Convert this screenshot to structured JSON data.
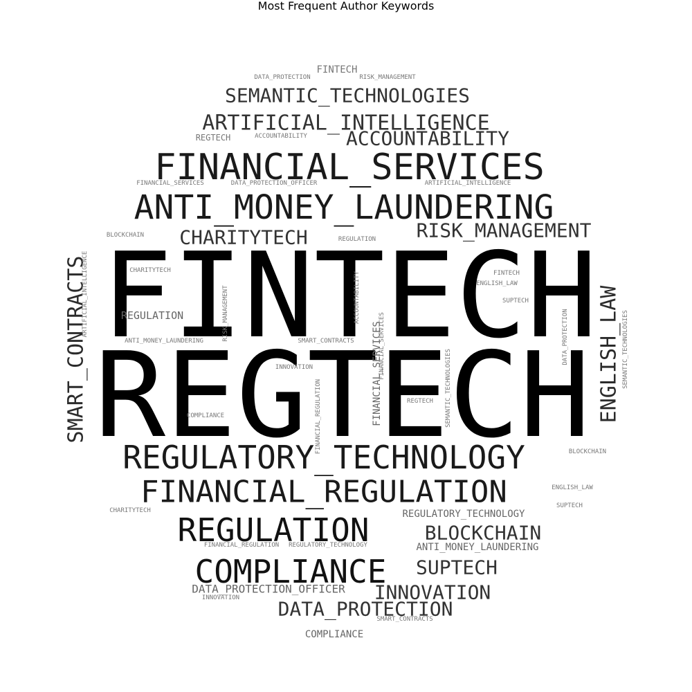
{
  "chart_data": {
    "type": "wordcloud",
    "title": "Most Frequent Author Keywords",
    "mask_shape": "circle",
    "color_scheme": "grayscale",
    "words": [
      {
        "text": "FINTECH",
        "weight": 100
      },
      {
        "text": "REGTECH",
        "weight": 98
      },
      {
        "text": "FINANCIAL_SERVICES",
        "weight": 40
      },
      {
        "text": "ANTI_MONEY_LAUNDERING",
        "weight": 38
      },
      {
        "text": "REGULATORY_TECHNOLOGY",
        "weight": 36
      },
      {
        "text": "COMPLIANCE",
        "weight": 34
      },
      {
        "text": "REGULATION",
        "weight": 34
      },
      {
        "text": "FINANCIAL_REGULATION",
        "weight": 32
      },
      {
        "text": "SMART_CONTRACTS",
        "weight": 24
      },
      {
        "text": "ENGLISH_LAW",
        "weight": 20
      },
      {
        "text": "ARTIFICIAL_INTELLIGENCE",
        "weight": 22
      },
      {
        "text": "SEMANTIC_TECHNOLOGIES",
        "weight": 22
      },
      {
        "text": "RISK_MANAGEMENT",
        "weight": 22
      },
      {
        "text": "CHARITYTECH",
        "weight": 22
      },
      {
        "text": "ACCOUNTABILITY",
        "weight": 22
      },
      {
        "text": "BLOCKCHAIN",
        "weight": 22
      },
      {
        "text": "SUPTECH",
        "weight": 22
      },
      {
        "text": "INNOVATION",
        "weight": 22
      },
      {
        "text": "DATA_PROTECTION",
        "weight": 22
      },
      {
        "text": "DATA_PROTECTION_OFFICER",
        "weight": 12
      },
      {
        "text": "FINTECH",
        "weight": 11
      },
      {
        "text": "COMPLIANCE",
        "weight": 11
      },
      {
        "text": "REGULATORY_TECHNOLOGY",
        "weight": 11
      },
      {
        "text": "ANTI_MONEY_LAUNDERING",
        "weight": 11
      },
      {
        "text": "REGULATION",
        "weight": 11
      },
      {
        "text": "FINANCIAL_SERVICES",
        "weight": 10
      },
      {
        "text": "DATA_PROTECTION",
        "weight": 7
      },
      {
        "text": "RISK_MANAGEMENT",
        "weight": 7
      },
      {
        "text": "REGTECH",
        "weight": 10
      },
      {
        "text": "ACCOUNTABILITY",
        "weight": 7
      },
      {
        "text": "FINANCIAL_SERVICES",
        "weight": 7
      },
      {
        "text": "DATA_PROTECTION_OFFICER",
        "weight": 7
      },
      {
        "text": "ARTIFICIAL_INTELLIGENCE",
        "weight": 7
      },
      {
        "text": "BLOCKCHAIN",
        "weight": 6
      },
      {
        "text": "REGULATION",
        "weight": 6
      },
      {
        "text": "CHARITYTECH",
        "weight": 6
      },
      {
        "text": "FINTECH",
        "weight": 6
      },
      {
        "text": "ENGLISH_LAW",
        "weight": 6
      },
      {
        "text": "SUPTECH",
        "weight": 6
      },
      {
        "text": "ANTI_MONEY_LAUNDERING",
        "weight": 6
      },
      {
        "text": "SMART_CONTRACTS",
        "weight": 6
      },
      {
        "text": "INNOVATION",
        "weight": 6
      },
      {
        "text": "REGTECH",
        "weight": 6
      },
      {
        "text": "COMPLIANCE",
        "weight": 6
      },
      {
        "text": "BLOCKCHAIN",
        "weight": 6
      },
      {
        "text": "ENGLISH_LAW",
        "weight": 6
      },
      {
        "text": "SUPTECH",
        "weight": 6
      },
      {
        "text": "CHARITYTECH",
        "weight": 6
      },
      {
        "text": "FINANCIAL_REGULATION",
        "weight": 6
      },
      {
        "text": "REGULATORY_TECHNOLOGY",
        "weight": 6
      },
      {
        "text": "INNOVATION",
        "weight": 6
      },
      {
        "text": "SMART_CONTRACTS",
        "weight": 6
      },
      {
        "text": "ARTIFICIAL_INTELLIGENCE",
        "weight": 6
      },
      {
        "text": "RISK_MANAGEMENT",
        "weight": 6
      },
      {
        "text": "ACCOUNTABILITY",
        "weight": 6
      },
      {
        "text": "FINANCIAL_SERVICES",
        "weight": 6
      },
      {
        "text": "FINANCIAL_REGULATION",
        "weight": 6
      },
      {
        "text": "SEMANTIC_TECHNOLOGIES",
        "weight": 6
      },
      {
        "text": "DATA_PROTECTION",
        "weight": 6
      },
      {
        "text": "SEMANTIC_TECHNOLOGIES",
        "weight": 6
      }
    ]
  }
}
